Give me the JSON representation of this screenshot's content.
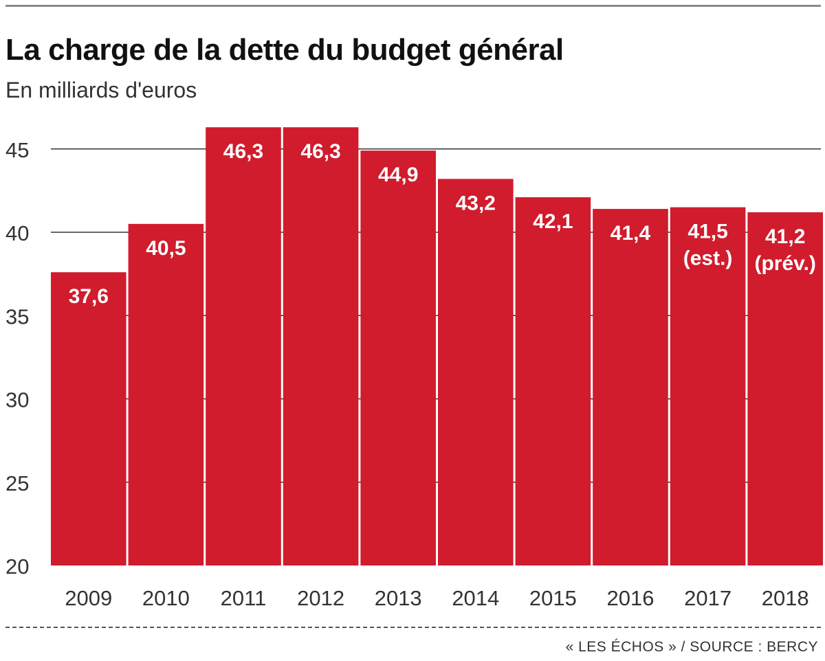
{
  "header": {
    "title": "La charge de la dette du budget général",
    "subtitle": "En milliards d'euros"
  },
  "footer": {
    "source": "« LES ÉCHOS » / SOURCE : BERCY"
  },
  "colors": {
    "bar": "#d01c2d",
    "gridline": "#333333",
    "label": "#ffffff"
  },
  "chart_data": {
    "type": "bar",
    "title": "La charge de la dette du budget général",
    "subtitle": "En milliards d'euros",
    "categories": [
      "2009",
      "2010",
      "2011",
      "2012",
      "2013",
      "2014",
      "2015",
      "2016",
      "2017",
      "2018"
    ],
    "values": [
      37.6,
      40.5,
      46.3,
      46.3,
      44.9,
      43.2,
      42.1,
      41.4,
      41.5,
      41.2
    ],
    "data_labels": [
      "37,6",
      "40,5",
      "46,3",
      "46,3",
      "44,9",
      "43,2",
      "42,1",
      "41,4",
      "41,5",
      "41,2"
    ],
    "label_notes": [
      "",
      "",
      "",
      "",
      "",
      "",
      "",
      "",
      "(est.)",
      "(prév.)"
    ],
    "yticks": [
      20,
      25,
      30,
      35,
      40,
      45
    ],
    "ylim": [
      20,
      47
    ],
    "xlabel": "",
    "ylabel": "",
    "grid": true,
    "legend": "none"
  }
}
